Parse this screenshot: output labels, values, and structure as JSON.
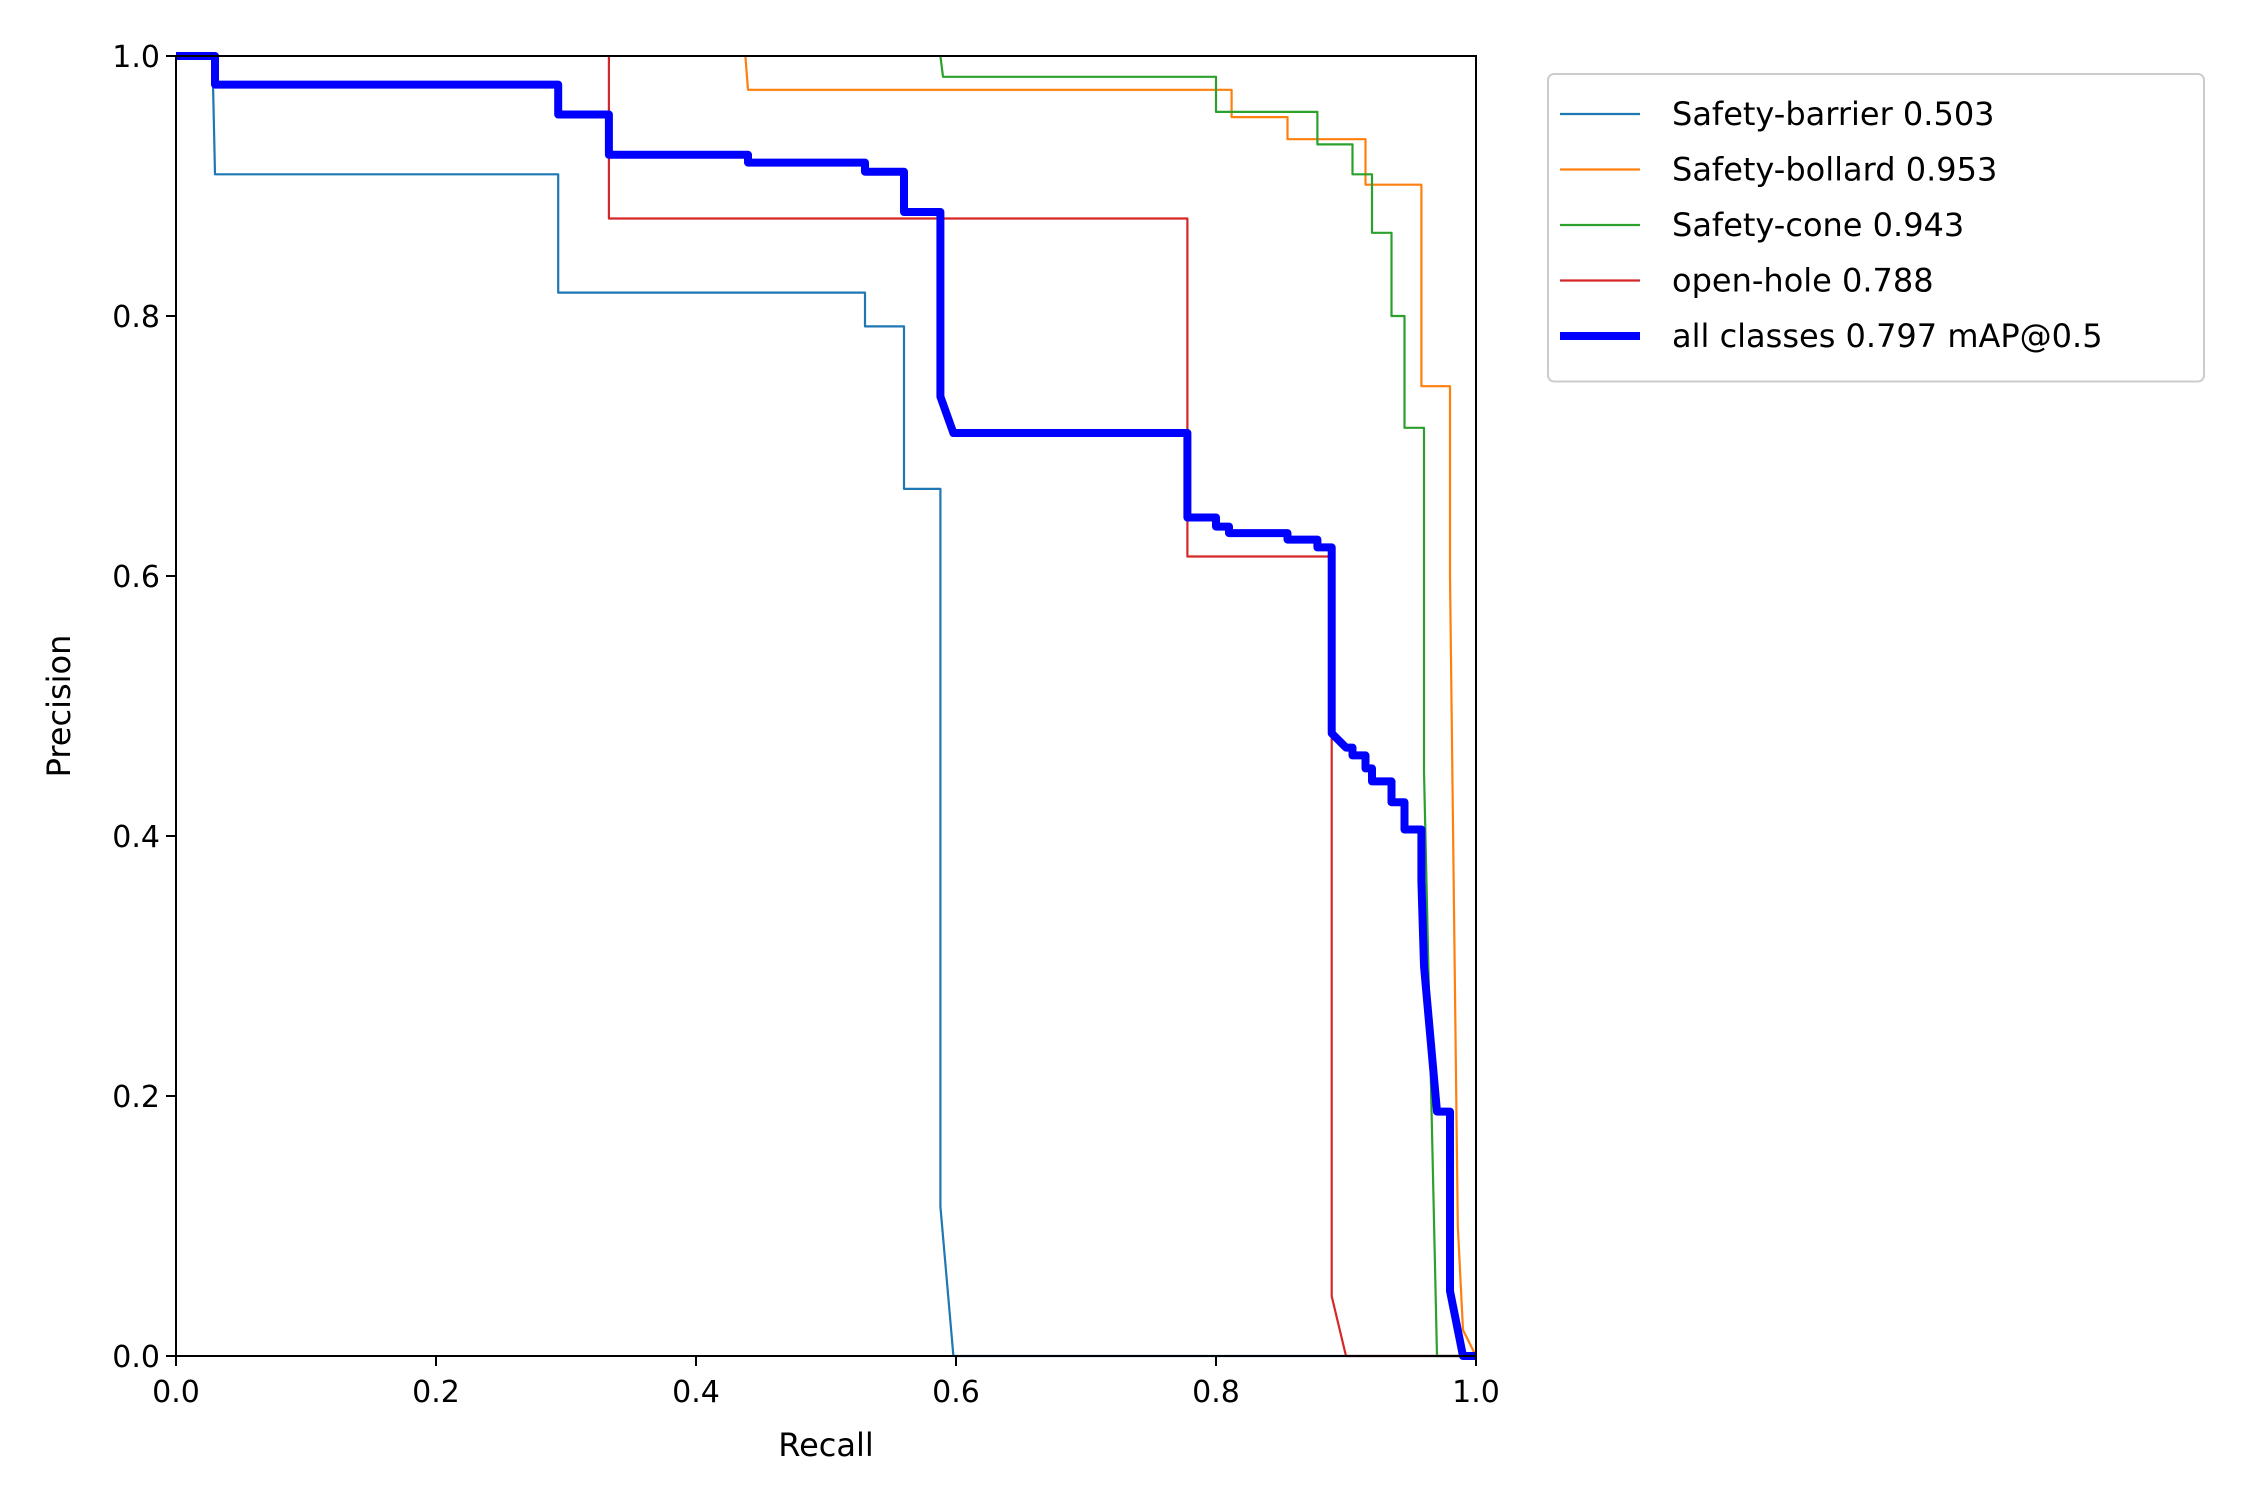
{
  "chart_data": {
    "type": "line",
    "title": "",
    "xlabel": "Recall",
    "ylabel": "Precision",
    "xlim": [
      0,
      1
    ],
    "ylim": [
      0,
      1
    ],
    "grid": false,
    "legend_position": "outside-top-right",
    "x_ticks": [
      "0.0",
      "0.2",
      "0.4",
      "0.6",
      "0.8",
      "1.0"
    ],
    "y_ticks": [
      "0.0",
      "0.2",
      "0.4",
      "0.6",
      "0.8",
      "1.0"
    ],
    "series": [
      {
        "name": "Safety-barrier 0.503",
        "color": "#1f77b4",
        "width": "thin",
        "points": [
          [
            0,
            1
          ],
          [
            0.028,
            1
          ],
          [
            0.03,
            0.909
          ],
          [
            0.294,
            0.909
          ],
          [
            0.294,
            0.818
          ],
          [
            0.53,
            0.818
          ],
          [
            0.53,
            0.792
          ],
          [
            0.56,
            0.792
          ],
          [
            0.56,
            0.667
          ],
          [
            0.588,
            0.667
          ],
          [
            0.588,
            0.115
          ],
          [
            0.598,
            0
          ],
          [
            1,
            0
          ]
        ]
      },
      {
        "name": "Safety-bollard 0.953",
        "color": "#ff7f0e",
        "width": "thin",
        "points": [
          [
            0.438,
            1
          ],
          [
            0.44,
            0.974
          ],
          [
            0.812,
            0.974
          ],
          [
            0.812,
            0.953
          ],
          [
            0.855,
            0.953
          ],
          [
            0.855,
            0.936
          ],
          [
            0.915,
            0.936
          ],
          [
            0.915,
            0.901
          ],
          [
            0.958,
            0.901
          ],
          [
            0.958,
            0.746
          ],
          [
            0.98,
            0.746
          ],
          [
            0.98,
            0.6
          ],
          [
            0.986,
            0.1
          ],
          [
            0.99,
            0.02
          ],
          [
            1,
            0
          ]
        ]
      },
      {
        "name": "Safety-cone 0.943",
        "color": "#2ca02c",
        "width": "thin",
        "points": [
          [
            0.588,
            1
          ],
          [
            0.59,
            0.984
          ],
          [
            0.8,
            0.984
          ],
          [
            0.8,
            0.957
          ],
          [
            0.878,
            0.957
          ],
          [
            0.878,
            0.932
          ],
          [
            0.905,
            0.932
          ],
          [
            0.905,
            0.909
          ],
          [
            0.92,
            0.909
          ],
          [
            0.92,
            0.864
          ],
          [
            0.935,
            0.864
          ],
          [
            0.935,
            0.8
          ],
          [
            0.945,
            0.8
          ],
          [
            0.945,
            0.714
          ],
          [
            0.96,
            0.714
          ],
          [
            0.96,
            0.45
          ],
          [
            0.97,
            0
          ],
          [
            1,
            0
          ]
        ]
      },
      {
        "name": "open-hole 0.788",
        "color": "#d62728",
        "width": "thin",
        "points": [
          [
            0.333,
            1
          ],
          [
            0.333,
            0.875
          ],
          [
            0.778,
            0.875
          ],
          [
            0.778,
            0.615
          ],
          [
            0.889,
            0.615
          ],
          [
            0.889,
            0.046
          ],
          [
            0.9,
            0
          ],
          [
            1,
            0
          ]
        ]
      },
      {
        "name": "all classes 0.797 mAP@0.5",
        "color": "#0000ff",
        "width": "thick",
        "points": [
          [
            0,
            1
          ],
          [
            0.03,
            1
          ],
          [
            0.03,
            0.978
          ],
          [
            0.294,
            0.978
          ],
          [
            0.294,
            0.955
          ],
          [
            0.333,
            0.955
          ],
          [
            0.333,
            0.924
          ],
          [
            0.44,
            0.924
          ],
          [
            0.44,
            0.918
          ],
          [
            0.53,
            0.918
          ],
          [
            0.53,
            0.911
          ],
          [
            0.56,
            0.911
          ],
          [
            0.56,
            0.88
          ],
          [
            0.588,
            0.88
          ],
          [
            0.588,
            0.738
          ],
          [
            0.598,
            0.71
          ],
          [
            0.778,
            0.71
          ],
          [
            0.778,
            0.645
          ],
          [
            0.8,
            0.645
          ],
          [
            0.8,
            0.638
          ],
          [
            0.81,
            0.638
          ],
          [
            0.81,
            0.633
          ],
          [
            0.855,
            0.633
          ],
          [
            0.855,
            0.628
          ],
          [
            0.878,
            0.628
          ],
          [
            0.878,
            0.622
          ],
          [
            0.889,
            0.622
          ],
          [
            0.889,
            0.479
          ],
          [
            0.9,
            0.468
          ],
          [
            0.905,
            0.468
          ],
          [
            0.905,
            0.462
          ],
          [
            0.915,
            0.462
          ],
          [
            0.915,
            0.452
          ],
          [
            0.92,
            0.452
          ],
          [
            0.92,
            0.442
          ],
          [
            0.935,
            0.442
          ],
          [
            0.935,
            0.426
          ],
          [
            0.945,
            0.426
          ],
          [
            0.945,
            0.405
          ],
          [
            0.958,
            0.405
          ],
          [
            0.958,
            0.365
          ],
          [
            0.96,
            0.3
          ],
          [
            0.97,
            0.188
          ],
          [
            0.98,
            0.188
          ],
          [
            0.98,
            0.05
          ],
          [
            0.99,
            0
          ],
          [
            1,
            0
          ]
        ]
      }
    ]
  }
}
